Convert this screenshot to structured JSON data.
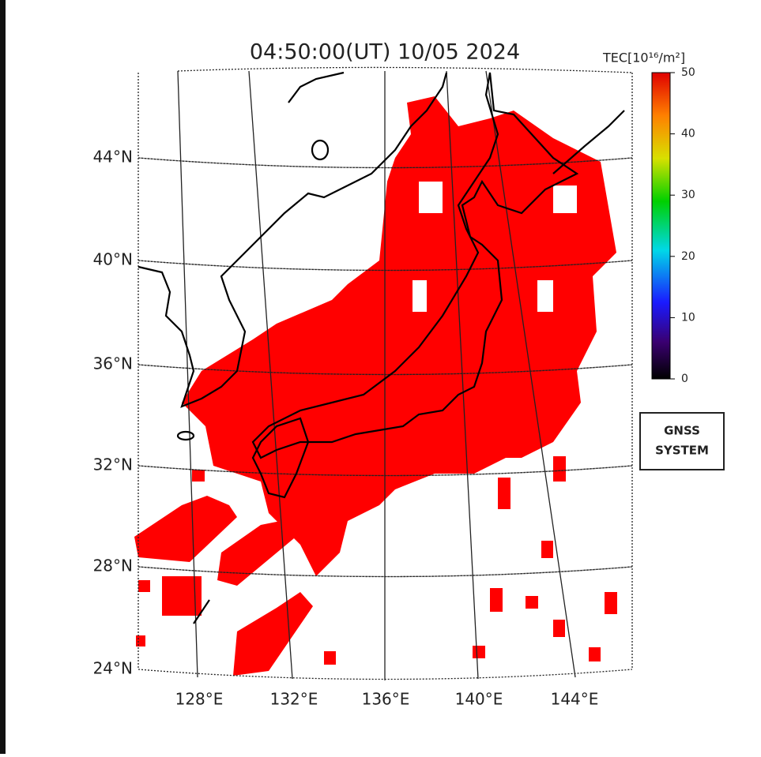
{
  "title": "04:50:00(UT) 10/05 2024",
  "lat_labels": [
    "44°N",
    "40°N",
    "36°N",
    "32°N",
    "28°N",
    "24°N"
  ],
  "lon_labels": [
    "128°E",
    "132°E",
    "136°E",
    "140°E",
    "144°E"
  ],
  "colorbar": {
    "label": "TEC[10¹⁶/m²]",
    "range": [
      0,
      50
    ],
    "ticks": [
      0,
      10,
      20,
      30,
      40,
      50
    ]
  },
  "legend_box": [
    "GNSS",
    "SYSTEM"
  ]
}
